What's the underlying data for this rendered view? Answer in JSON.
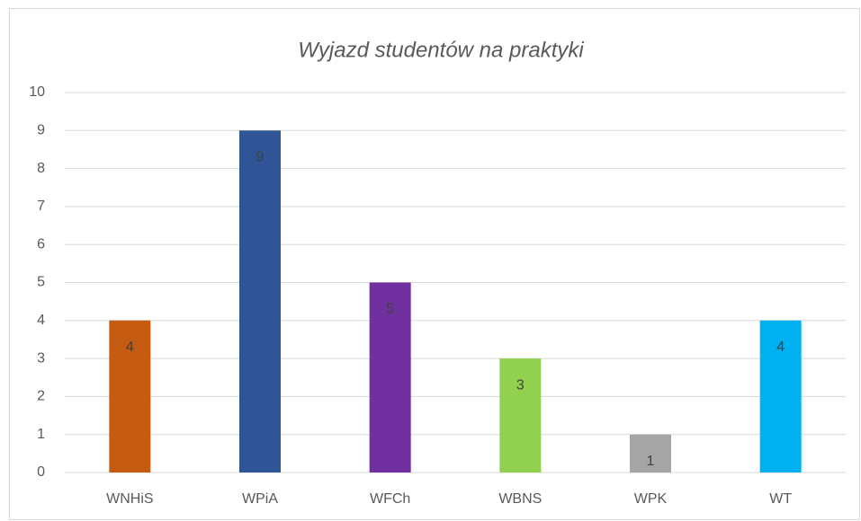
{
  "chart_data": {
    "type": "bar",
    "title": "Wyjazd studentów na praktyki",
    "categories": [
      "WNHiS",
      "WPiA",
      "WFCh",
      "WBNS",
      "WPK",
      "WT"
    ],
    "values": [
      4,
      9,
      5,
      3,
      1,
      4
    ],
    "colors": [
      "#c55a11",
      "#2f5597",
      "#7030a0",
      "#92d050",
      "#a5a5a5",
      "#00b0f0"
    ],
    "ylim": [
      0,
      10
    ],
    "yticks": [
      0,
      1,
      2,
      3,
      4,
      5,
      6,
      7,
      8,
      9,
      10
    ],
    "grid": true
  }
}
